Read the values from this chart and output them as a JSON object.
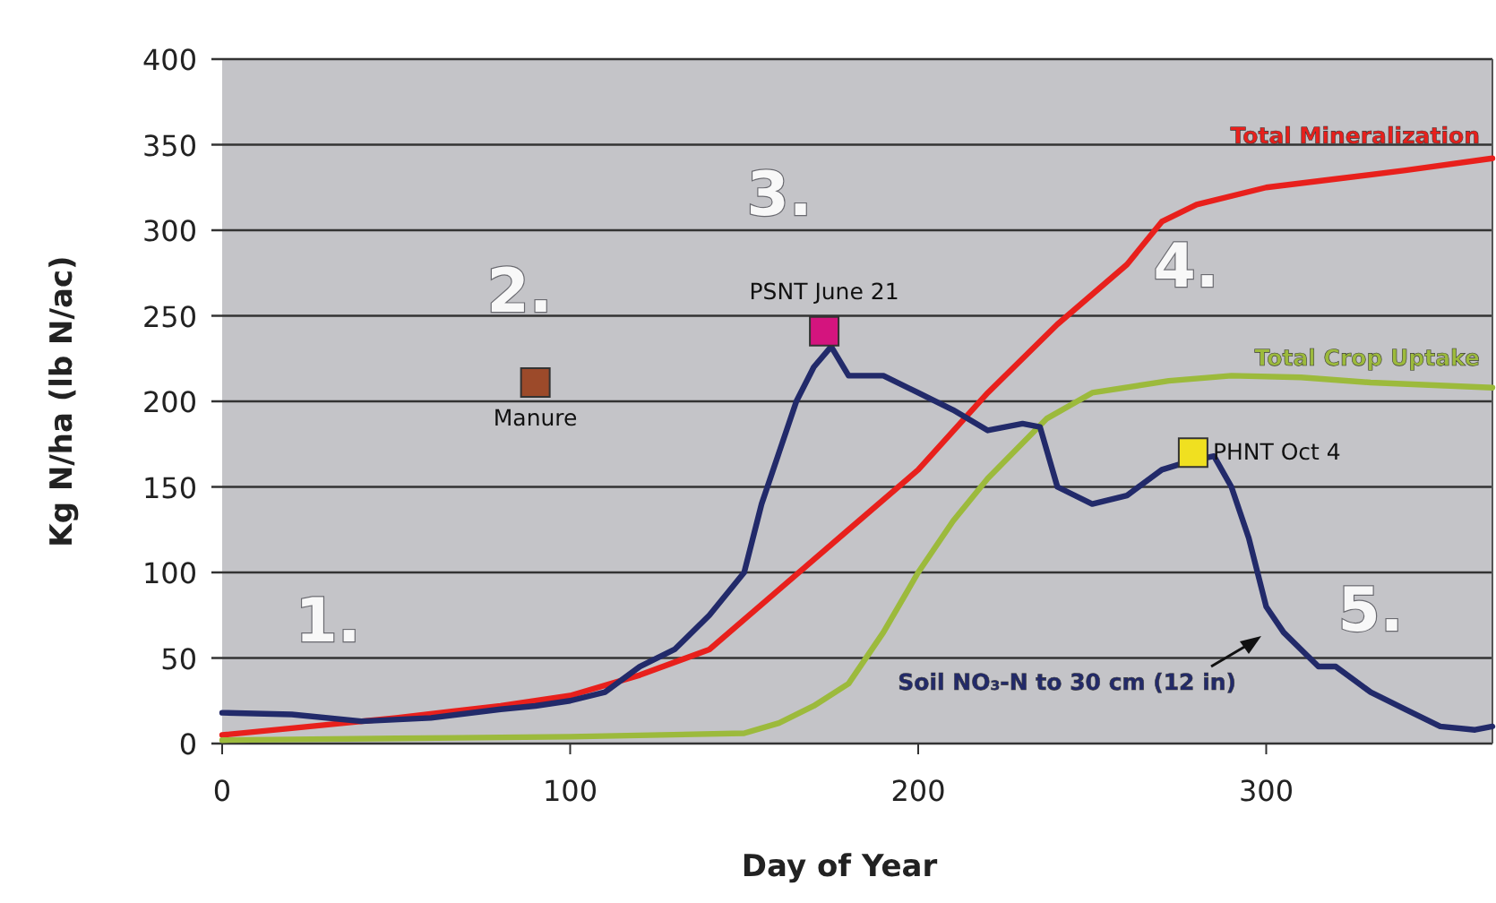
{
  "chart_data": {
    "type": "line",
    "xlabel": "Day of Year",
    "ylabel": "Kg N/ha  (lb N/ac)",
    "xlim": [
      0,
      365
    ],
    "ylim": [
      0,
      400
    ],
    "xticks": [
      0,
      100,
      200,
      300
    ],
    "yticks": [
      0,
      50,
      100,
      150,
      200,
      250,
      300,
      350,
      400
    ],
    "grid": "y",
    "series": [
      {
        "name": "Total Mineralization",
        "color": "#e8201c",
        "x": [
          0,
          20,
          50,
          80,
          100,
          120,
          140,
          160,
          180,
          200,
          220,
          240,
          260,
          270,
          280,
          300,
          320,
          340,
          365
        ],
        "values": [
          5,
          9,
          15,
          22,
          28,
          40,
          55,
          90,
          125,
          160,
          205,
          245,
          280,
          305,
          315,
          325,
          330,
          335,
          342
        ]
      },
      {
        "name": "Total Crop Uptake",
        "color": "#9cba3c",
        "x": [
          0,
          50,
          100,
          150,
          160,
          170,
          180,
          190,
          200,
          210,
          220,
          237,
          250,
          272,
          290,
          310,
          330,
          365
        ],
        "values": [
          2,
          3,
          4,
          6,
          12,
          22,
          35,
          65,
          100,
          130,
          155,
          190,
          205,
          212,
          215,
          214,
          211,
          208
        ]
      },
      {
        "name": "Soil NO₃-N to 30 cm (12 in)",
        "color": "#222a6a",
        "x": [
          0,
          20,
          40,
          60,
          80,
          90,
          100,
          110,
          120,
          130,
          140,
          150,
          155,
          160,
          165,
          170,
          175,
          180,
          190,
          200,
          210,
          220,
          230,
          235,
          240,
          250,
          260,
          270,
          278,
          285,
          290,
          295,
          300,
          305,
          310,
          315,
          320,
          330,
          340,
          350,
          360,
          365
        ],
        "values": [
          18,
          17,
          13,
          15,
          20,
          22,
          25,
          30,
          45,
          55,
          75,
          100,
          140,
          170,
          200,
          220,
          232,
          215,
          215,
          205,
          195,
          183,
          187,
          185,
          150,
          140,
          145,
          160,
          165,
          168,
          150,
          120,
          80,
          65,
          55,
          45,
          45,
          30,
          20,
          10,
          8,
          10
        ]
      },
      {
        "name": "Manure",
        "type": "scatter",
        "marker": "square",
        "color": "#9c4a2a",
        "x": [
          90
        ],
        "values": [
          211
        ]
      },
      {
        "name": "PSNT June 21",
        "type": "scatter",
        "marker": "square",
        "color": "#d4147e",
        "x": [
          173
        ],
        "values": [
          241
        ]
      },
      {
        "name": "PHNT  Oct 4",
        "type": "scatter",
        "marker": "square",
        "color": "#f0e020",
        "x": [
          279
        ],
        "values": [
          170
        ]
      }
    ],
    "annotations": [
      "1.",
      "2.",
      "3.",
      "4.",
      "5."
    ]
  }
}
